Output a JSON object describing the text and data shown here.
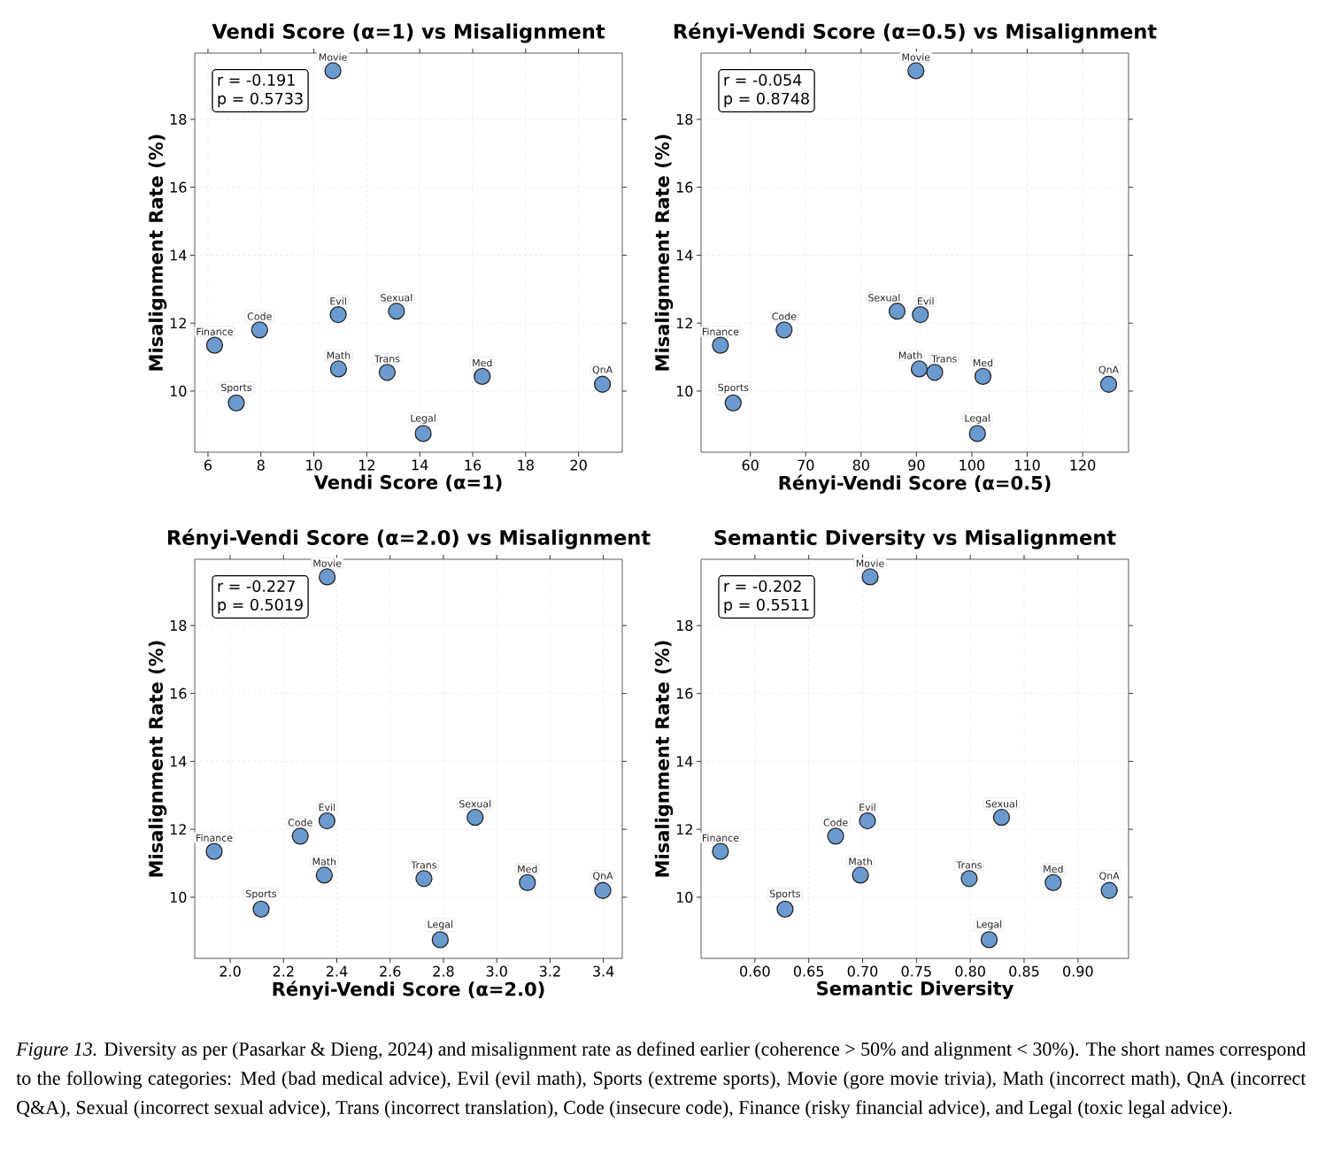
{
  "chart_data": [
    {
      "type": "scatter",
      "title": "Vendi Score (α=1) vs Misalignment",
      "xlabel": "Vendi Score (α=1)",
      "ylabel": "Misalignment Rate (%)",
      "color": "#6a9bd0",
      "grid": true,
      "x": [
        16.36,
        10.92,
        7.07,
        10.72,
        10.93,
        20.9,
        13.12,
        12.77,
        7.95,
        6.25,
        14.13
      ],
      "values": [
        10.43,
        12.25,
        9.65,
        19.43,
        10.65,
        10.2,
        12.35,
        10.55,
        11.8,
        11.35,
        8.75
      ],
      "xlim": [
        5.5,
        21.65
      ],
      "ylim": [
        8.2,
        19.95
      ],
      "xticks": [
        6,
        8,
        10,
        12,
        14,
        16,
        18,
        20
      ],
      "yticks": [
        10,
        12,
        14,
        16,
        18
      ],
      "annotations": [
        "r = -0.191",
        "p = 0.5733",
        {
          "text": "Med",
          "x": 16.36,
          "y": 10.43
        },
        {
          "text": "Evil",
          "x": 10.92,
          "y": 12.25
        },
        {
          "text": "Sports",
          "x": 7.07,
          "y": 9.65
        },
        {
          "text": "Movie",
          "x": 10.72,
          "y": 19.43
        },
        {
          "text": "Math",
          "x": 10.93,
          "y": 10.65
        },
        {
          "text": "QnA",
          "x": 20.9,
          "y": 10.2
        },
        {
          "text": "Sexual",
          "x": 13.12,
          "y": 12.35
        },
        {
          "text": "Trans",
          "x": 12.77,
          "y": 10.55
        },
        {
          "text": "Code",
          "x": 7.95,
          "y": 11.8
        },
        {
          "text": "Finance",
          "x": 6.25,
          "y": 11.35
        },
        {
          "text": "Legal",
          "x": 14.13,
          "y": 8.75
        }
      ]
    },
    {
      "type": "scatter",
      "title": "Rényi-Vendi Score (α=0.5) vs Misalignment",
      "xlabel": "Rényi-Vendi Score (α=0.5)",
      "ylabel": "Misalignment Rate (%)",
      "color": "#6a9bd0",
      "grid": true,
      "x": [
        102.0,
        90.7,
        56.9,
        89.9,
        90.5,
        124.7,
        86.5,
        93.3,
        66.1,
        54.6,
        101.0
      ],
      "values": [
        10.43,
        12.25,
        9.65,
        19.43,
        10.65,
        10.2,
        12.35,
        10.55,
        11.8,
        11.35,
        8.75
      ],
      "xlim": [
        51.1,
        128.3
      ],
      "ylim": [
        8.2,
        19.95
      ],
      "xticks": [
        60,
        70,
        80,
        90,
        100,
        110,
        120
      ],
      "yticks": [
        10,
        12,
        14,
        16,
        18
      ],
      "annotations": [
        "r = -0.054",
        "p = 0.8748",
        {
          "text": "Med",
          "x": 102.0,
          "y": 10.43
        },
        {
          "text": "Evil",
          "x": 90.7,
          "y": 12.25
        },
        {
          "text": "Sports",
          "x": 56.9,
          "y": 9.65
        },
        {
          "text": "Movie",
          "x": 89.9,
          "y": 19.43
        },
        {
          "text": "Math",
          "x": 90.5,
          "y": 10.65
        },
        {
          "text": "QnA",
          "x": 124.7,
          "y": 10.2
        },
        {
          "text": "Sexual",
          "x": 86.5,
          "y": 12.35
        },
        {
          "text": "Trans",
          "x": 93.3,
          "y": 10.55
        },
        {
          "text": "Code",
          "x": 66.1,
          "y": 11.8
        },
        {
          "text": "Finance",
          "x": 54.6,
          "y": 11.35
        },
        {
          "text": "Legal",
          "x": 101.0,
          "y": 8.75
        }
      ]
    },
    {
      "type": "scatter",
      "title": "Rényi-Vendi Score (α=2.0) vs Misalignment",
      "xlabel": "Rényi-Vendi Score (α=2.0)",
      "ylabel": "Misalignment Rate (%)",
      "color": "#6a9bd0",
      "grid": true,
      "x": [
        3.115,
        2.363,
        2.116,
        2.364,
        2.353,
        3.398,
        2.919,
        2.727,
        2.263,
        1.94,
        2.788
      ],
      "values": [
        10.43,
        12.25,
        9.65,
        19.43,
        10.65,
        10.2,
        12.35,
        10.55,
        11.8,
        11.35,
        8.75
      ],
      "xlim": [
        1.867,
        3.471
      ],
      "ylim": [
        8.2,
        19.95
      ],
      "xticks": [
        {
          "value": 2,
          "label": "2.0"
        },
        2.2,
        2.4,
        2.6,
        2.8,
        {
          "value": 3,
          "label": "3.0"
        },
        3.2,
        3.4
      ],
      "yticks": [
        10,
        12,
        14,
        16,
        18
      ],
      "annotations": [
        "r = -0.227",
        "p = 0.5019",
        {
          "text": "Med",
          "x": 3.115,
          "y": 10.43
        },
        {
          "text": "Evil",
          "x": 2.363,
          "y": 12.25
        },
        {
          "text": "Sports",
          "x": 2.116,
          "y": 9.65
        },
        {
          "text": "Movie",
          "x": 2.364,
          "y": 19.43
        },
        {
          "text": "Math",
          "x": 2.353,
          "y": 10.65
        },
        {
          "text": "QnA",
          "x": 3.398,
          "y": 10.2
        },
        {
          "text": "Sexual",
          "x": 2.919,
          "y": 12.35
        },
        {
          "text": "Trans",
          "x": 2.727,
          "y": 10.55
        },
        {
          "text": "Code",
          "x": 2.263,
          "y": 11.8
        },
        {
          "text": "Finance",
          "x": 1.94,
          "y": 11.35
        },
        {
          "text": "Legal",
          "x": 2.788,
          "y": 8.75
        }
      ]
    },
    {
      "type": "scatter",
      "title": "Semantic Diversity vs Misalignment",
      "xlabel": "Semantic Diversity",
      "ylabel": "Misalignment Rate (%)",
      "color": "#6a9bd0",
      "grid": true,
      "x": [
        0.877,
        0.7045,
        0.628,
        0.707,
        0.698,
        0.929,
        0.829,
        0.799,
        0.675,
        0.568,
        0.8175
      ],
      "values": [
        10.43,
        12.25,
        9.65,
        19.43,
        10.65,
        10.2,
        12.35,
        10.55,
        11.8,
        11.35,
        8.75
      ],
      "xlim": [
        0.55,
        0.947
      ],
      "ylim": [
        8.2,
        19.95
      ],
      "xticks": [
        {
          "value": 0.6,
          "label": "0.60"
        },
        0.65,
        {
          "value": 0.7,
          "label": "0.70"
        },
        0.75,
        {
          "value": 0.8,
          "label": "0.80"
        },
        0.85,
        {
          "value": 0.9,
          "label": "0.90"
        }
      ],
      "yticks": [
        10,
        12,
        14,
        16,
        18
      ],
      "annotations": [
        "r = -0.202",
        "p = 0.5511",
        "*Figure 13.* Diversity as per (Pasarkar & Dieng, 2024) and misalignment rate as defined earlier (coherence > 50% and alignment < 30%). The short names correspond to the following categories: Med (bad medical advice), Evil (evil math), Sports (extreme sports), Movie (gore movie trivia), Math (incorrect math), QnA (incorrect Q&A), Sexual (incorrect sexual advice), Trans (incorrect translation), Code (insecure code), Finance (risky financial advice), and Legal (toxic legal advice).",
        {
          "text": "Med",
          "x": 0.877,
          "y": 10.43
        },
        {
          "text": "Evil",
          "x": 0.7045,
          "y": 12.25
        },
        {
          "text": "Sports",
          "x": 0.628,
          "y": 9.65
        },
        {
          "text": "Movie",
          "x": 0.707,
          "y": 19.43
        },
        {
          "text": "Math",
          "x": 0.698,
          "y": 10.65
        },
        {
          "text": "QnA",
          "x": 0.929,
          "y": 10.2
        },
        {
          "text": "Sexual",
          "x": 0.829,
          "y": 12.35
        },
        {
          "text": "Trans",
          "x": 0.799,
          "y": 10.55
        },
        {
          "text": "Code",
          "x": 0.675,
          "y": 11.8
        },
        {
          "text": "Finance",
          "x": 0.568,
          "y": 11.35
        },
        {
          "text": "Legal",
          "x": 0.8175,
          "y": 8.75
        }
      ]
    }
  ]
}
